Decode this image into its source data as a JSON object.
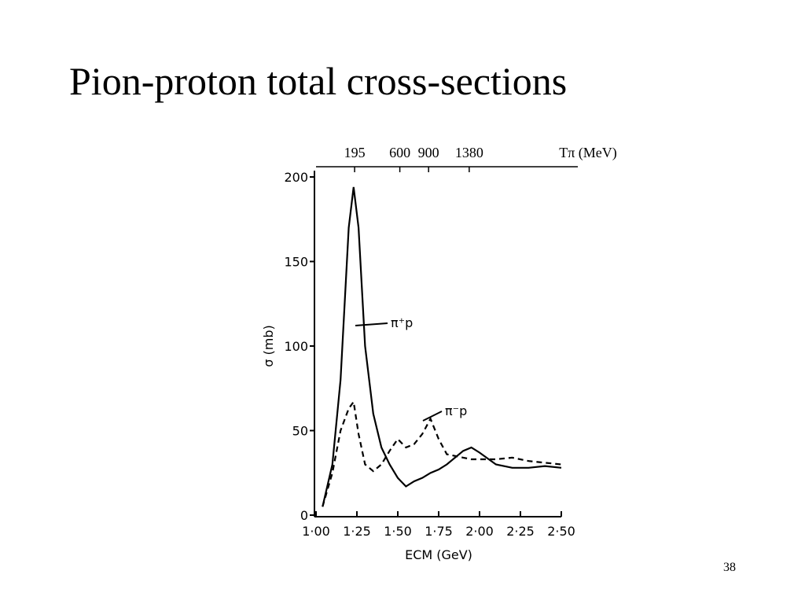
{
  "slide": {
    "title": "Pion-proton total cross-sections",
    "page": "38"
  },
  "chart_data": {
    "type": "line",
    "xlabel": "ECM (GeV)",
    "ylabel": "σ (mb)",
    "x2label": "Tπ (MeV)",
    "x": [
      1.04,
      1.1,
      1.15,
      1.2,
      1.23,
      1.26,
      1.3,
      1.35,
      1.4,
      1.45,
      1.5,
      1.55,
      1.6,
      1.65,
      1.7,
      1.75,
      1.8,
      1.9,
      1.95,
      2.0,
      2.1,
      2.2,
      2.3,
      2.4,
      2.5
    ],
    "series": [
      {
        "name": "π⁺p",
        "color": "#000000",
        "style": "solid",
        "values": [
          5,
          30,
          80,
          170,
          194,
          170,
          100,
          60,
          40,
          30,
          22,
          17,
          20,
          22,
          25,
          27,
          30,
          38,
          40,
          37,
          30,
          28,
          28,
          29,
          28
        ]
      },
      {
        "name": "π⁻p",
        "color": "#000000",
        "style": "dashed",
        "values": [
          5,
          25,
          50,
          63,
          67,
          48,
          30,
          26,
          30,
          38,
          45,
          40,
          42,
          48,
          57,
          45,
          36,
          34,
          33,
          33,
          33,
          34,
          32,
          31,
          30
        ]
      }
    ],
    "xlim": [
      1.0,
      2.5
    ],
    "ylim": [
      0,
      200
    ],
    "xticks": [
      {
        "value": 1.0,
        "label": "1·00"
      },
      {
        "value": 1.25,
        "label": "1·25"
      },
      {
        "value": 1.5,
        "label": "1·50"
      },
      {
        "value": 1.75,
        "label": "1·75"
      },
      {
        "value": 2.0,
        "label": "2·00"
      },
      {
        "value": 2.25,
        "label": "2·25"
      },
      {
        "value": 2.5,
        "label": "2·50"
      }
    ],
    "yticks": [
      0,
      50,
      100,
      150,
      200
    ],
    "x2ticks": [
      195,
      600,
      900,
      1380
    ]
  }
}
